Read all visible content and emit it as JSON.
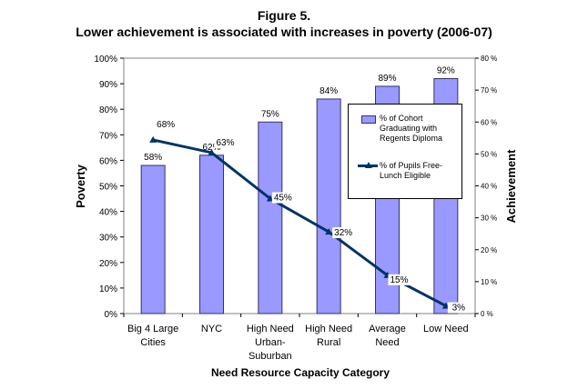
{
  "figure": {
    "title_line1": "Figure 5.",
    "title_line2": "Lower achievement is associated with increases in poverty (2006-07)"
  },
  "chart_data": {
    "type": "bar",
    "categories": [
      [
        "Big 4 Large",
        "Cities"
      ],
      [
        "NYC"
      ],
      [
        "High Need",
        "Urban-",
        "Suburban"
      ],
      [
        "High Need",
        "Rural"
      ],
      [
        "Average",
        "Need"
      ],
      [
        "Low Need"
      ]
    ],
    "xlabel": "Need Resource Capacity Category",
    "ylabel_left": "Poverty",
    "ylabel_right": "Achievement",
    "ylim_left": [
      0,
      100
    ],
    "ylim_right": [
      0,
      80
    ],
    "left_ticks": [
      "0%",
      "10%",
      "20%",
      "30%",
      "40%",
      "50%",
      "60%",
      "70%",
      "80%",
      "90%",
      "100%"
    ],
    "right_ticks": [
      "0 %",
      "10 %",
      "20 %",
      "30 %",
      "40 %",
      "50 %",
      "60 %",
      "70 %",
      "80 %"
    ],
    "series": [
      {
        "name": "% of Cohort Graduating with Regents Diploma",
        "type": "bar",
        "axis": "left",
        "values": [
          58,
          62,
          75,
          84,
          89,
          92
        ],
        "labels": [
          "58%",
          "62%",
          "75%",
          "84%",
          "89%",
          "92%"
        ],
        "color": "#9999ff"
      },
      {
        "name": "% of Pupils Free-Lunch Eligible",
        "type": "line",
        "axis": "left",
        "values": [
          68,
          63,
          45,
          32,
          15,
          3
        ],
        "labels": [
          "68%",
          "63%",
          "45%",
          "32%",
          "15%",
          "3%"
        ],
        "color": "#003366"
      }
    ],
    "legend": {
      "placement": "right",
      "bar_text_lines": [
        "% of Cohort",
        "Graduating with",
        "Regents Diploma"
      ],
      "line_text_lines": [
        "% of Pupils Free-",
        "Lunch Eligible"
      ]
    }
  }
}
